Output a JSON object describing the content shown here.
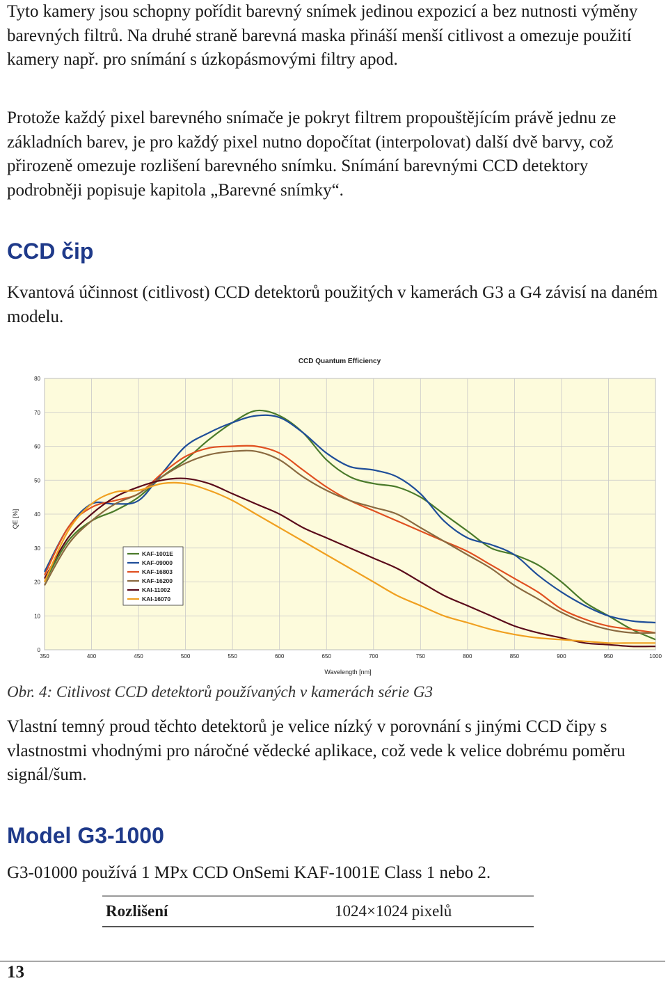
{
  "paragraphs": {
    "p1": "Tyto kamery jsou schopny pořídit barevný snímek jedinou expozicí a bez nutnosti výměny barevných filtrů. Na druhé straně barevná maska přináší menší citlivost a omezuje použití kamery např. pro snímání s úzkopásmovými filtry apod.",
    "p2": "Protože každý pixel barevného snímače je pokryt filtrem propouštějícím právě jednu ze základních barev, je pro každý pixel nutno dopočítat (interpolovat) další dvě barvy, což přirozeně omezuje rozlišení barevného snímku. Snímání barevnými CCD detektory podrobněji popisuje kapitola „Barevné snímky“.",
    "p3": "Kvantová účinnost (citlivost) CCD detektorů použitých v kamerách G3 a G4 závisí na daném modelu.",
    "p4": "Vlastní temný proud těchto detektorů je velice nízký v porovnání s jinými CCD čipy s vlastnostmi vhodnými pro náročné vědecké aplikace, což vede k velice dobrému poměru signál/šum.",
    "p5": "G3-01000 používá 1 MPx CCD OnSemi KAF-1001E Class 1 nebo 2."
  },
  "headings": {
    "ccd_chip": "CCD čip",
    "model": "Model G3-1000"
  },
  "caption": "Obr. 4: Citlivost CCD detektorů používaných v kamerách série G3",
  "spec_table": {
    "label": "Rozlišení",
    "value": "1024×1024 pixelů"
  },
  "page_number": "13",
  "colors": {
    "heading": "#1f3a8a",
    "plot_background": "#fdfbdc"
  },
  "chart_data": {
    "type": "line",
    "title": "CCD Quantum Efficiency",
    "xlabel": "Wavelength [nm]",
    "ylabel": "QE [%]",
    "xlim": [
      350,
      1000
    ],
    "ylim": [
      0,
      80
    ],
    "x_ticks": [
      350,
      400,
      450,
      500,
      550,
      600,
      650,
      700,
      750,
      800,
      850,
      900,
      950,
      1000
    ],
    "y_ticks": [
      0,
      10,
      20,
      30,
      40,
      50,
      60,
      70,
      80
    ],
    "grid": true,
    "legend_position": "bottom-left",
    "series": [
      {
        "name": "KAF-1001E",
        "color": "#4a7a2a",
        "points": [
          [
            350,
            20
          ],
          [
            375,
            32
          ],
          [
            400,
            38
          ],
          [
            425,
            41
          ],
          [
            450,
            45
          ],
          [
            475,
            51
          ],
          [
            500,
            56
          ],
          [
            525,
            62
          ],
          [
            550,
            67
          ],
          [
            575,
            70.5
          ],
          [
            600,
            69
          ],
          [
            625,
            64
          ],
          [
            650,
            56
          ],
          [
            675,
            51
          ],
          [
            700,
            49
          ],
          [
            725,
            48
          ],
          [
            750,
            45
          ],
          [
            775,
            40
          ],
          [
            800,
            35
          ],
          [
            825,
            30
          ],
          [
            850,
            28
          ],
          [
            875,
            25
          ],
          [
            900,
            20
          ],
          [
            925,
            14
          ],
          [
            950,
            10
          ],
          [
            975,
            6
          ],
          [
            1000,
            3
          ]
        ]
      },
      {
        "name": "KAF-09000",
        "color": "#1f4e99",
        "points": [
          [
            350,
            23
          ],
          [
            375,
            36
          ],
          [
            400,
            43
          ],
          [
            425,
            43
          ],
          [
            450,
            44
          ],
          [
            475,
            52
          ],
          [
            500,
            60
          ],
          [
            525,
            64
          ],
          [
            550,
            67
          ],
          [
            575,
            69
          ],
          [
            600,
            68.5
          ],
          [
            625,
            64
          ],
          [
            650,
            58
          ],
          [
            675,
            54
          ],
          [
            700,
            53
          ],
          [
            725,
            51
          ],
          [
            750,
            46
          ],
          [
            775,
            38
          ],
          [
            800,
            33
          ],
          [
            825,
            31
          ],
          [
            850,
            28
          ],
          [
            875,
            22
          ],
          [
            900,
            17
          ],
          [
            925,
            13
          ],
          [
            950,
            10
          ],
          [
            975,
            8.5
          ],
          [
            1000,
            8
          ]
        ]
      },
      {
        "name": "KAF-16803",
        "color": "#e05020",
        "points": [
          [
            350,
            22
          ],
          [
            375,
            36
          ],
          [
            400,
            42
          ],
          [
            425,
            44
          ],
          [
            450,
            46
          ],
          [
            475,
            52
          ],
          [
            500,
            57
          ],
          [
            525,
            59.5
          ],
          [
            550,
            60
          ],
          [
            575,
            60
          ],
          [
            600,
            58
          ],
          [
            625,
            53
          ],
          [
            650,
            48
          ],
          [
            675,
            44
          ],
          [
            700,
            41
          ],
          [
            725,
            38
          ],
          [
            750,
            35
          ],
          [
            775,
            32
          ],
          [
            800,
            29
          ],
          [
            825,
            25
          ],
          [
            850,
            21
          ],
          [
            875,
            17
          ],
          [
            900,
            12
          ],
          [
            925,
            9
          ],
          [
            950,
            7
          ],
          [
            975,
            6
          ],
          [
            1000,
            5
          ]
        ]
      },
      {
        "name": "KAF-16200",
        "color": "#8a6a40",
        "points": [
          [
            350,
            19
          ],
          [
            375,
            31
          ],
          [
            400,
            38
          ],
          [
            425,
            43
          ],
          [
            450,
            46
          ],
          [
            475,
            51
          ],
          [
            500,
            55
          ],
          [
            525,
            57.5
          ],
          [
            550,
            58.5
          ],
          [
            575,
            58.5
          ],
          [
            600,
            56
          ],
          [
            625,
            51
          ],
          [
            650,
            47
          ],
          [
            675,
            44
          ],
          [
            700,
            42
          ],
          [
            725,
            40
          ],
          [
            750,
            36
          ],
          [
            775,
            32
          ],
          [
            800,
            28
          ],
          [
            825,
            24
          ],
          [
            850,
            19
          ],
          [
            875,
            15
          ],
          [
            900,
            11
          ],
          [
            925,
            8
          ],
          [
            950,
            6
          ],
          [
            975,
            5
          ],
          [
            1000,
            5
          ]
        ]
      },
      {
        "name": "KAI-11002",
        "color": "#5a0a1a",
        "points": [
          [
            350,
            21
          ],
          [
            375,
            33
          ],
          [
            400,
            40
          ],
          [
            425,
            45
          ],
          [
            450,
            48
          ],
          [
            475,
            50
          ],
          [
            500,
            50.5
          ],
          [
            525,
            49
          ],
          [
            550,
            46
          ],
          [
            575,
            43
          ],
          [
            600,
            40
          ],
          [
            625,
            36
          ],
          [
            650,
            33
          ],
          [
            675,
            30
          ],
          [
            700,
            27
          ],
          [
            725,
            24
          ],
          [
            750,
            20
          ],
          [
            775,
            16
          ],
          [
            800,
            13
          ],
          [
            825,
            10
          ],
          [
            850,
            7
          ],
          [
            875,
            5
          ],
          [
            900,
            3.5
          ],
          [
            925,
            2
          ],
          [
            950,
            1.5
          ],
          [
            975,
            1
          ],
          [
            1000,
            1
          ]
        ]
      },
      {
        "name": "KAI-16070",
        "color": "#f0a020",
        "points": [
          [
            350,
            20
          ],
          [
            375,
            35
          ],
          [
            400,
            43
          ],
          [
            425,
            46.5
          ],
          [
            450,
            47
          ],
          [
            475,
            49
          ],
          [
            500,
            49
          ],
          [
            525,
            47
          ],
          [
            550,
            44
          ],
          [
            575,
            40
          ],
          [
            600,
            36
          ],
          [
            625,
            32
          ],
          [
            650,
            28
          ],
          [
            675,
            24
          ],
          [
            700,
            20
          ],
          [
            725,
            16
          ],
          [
            750,
            13
          ],
          [
            775,
            10
          ],
          [
            800,
            8
          ],
          [
            825,
            6
          ],
          [
            850,
            4.5
          ],
          [
            875,
            3.5
          ],
          [
            900,
            3
          ],
          [
            925,
            2.5
          ],
          [
            950,
            2
          ],
          [
            975,
            2
          ],
          [
            1000,
            2
          ]
        ]
      }
    ]
  }
}
